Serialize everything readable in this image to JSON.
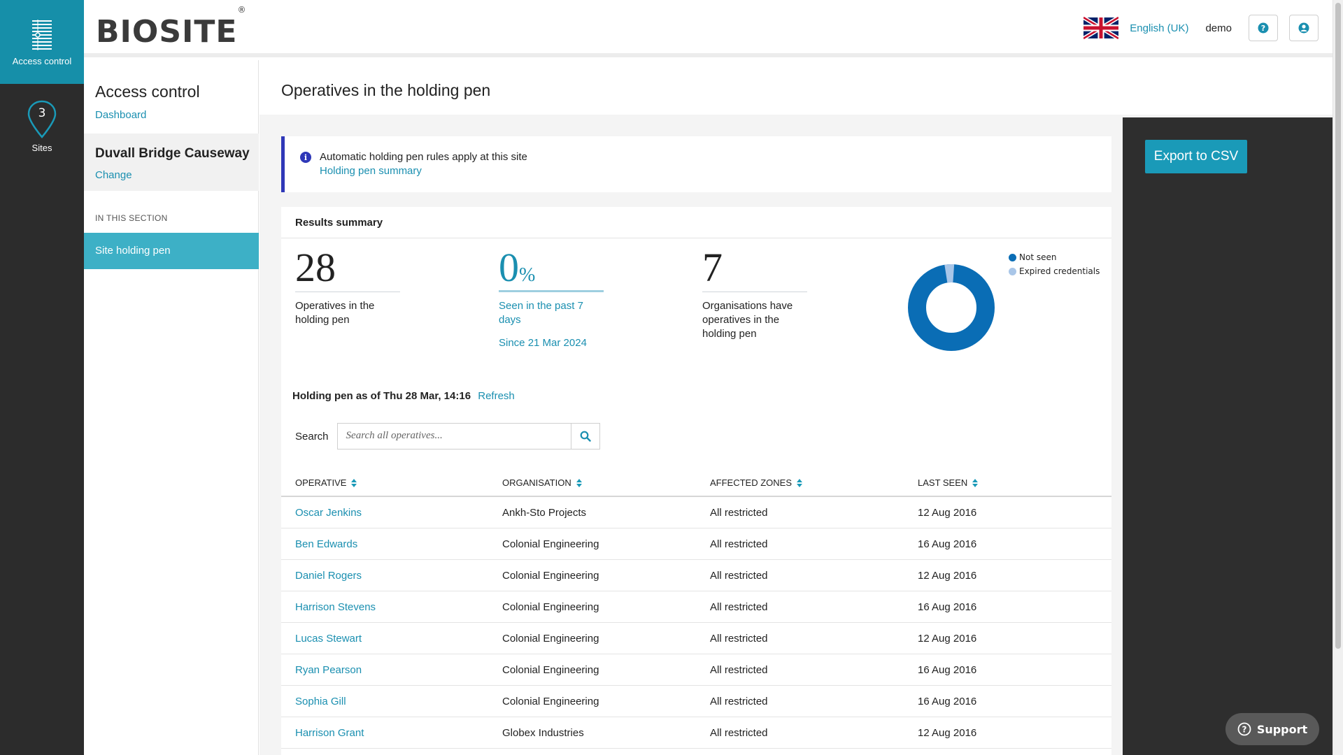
{
  "rail": {
    "items": [
      {
        "label": "Access control",
        "icon": "access-control-icon"
      },
      {
        "label": "Sites",
        "icon": "map-pin-icon",
        "badge": "3"
      }
    ]
  },
  "header": {
    "logo": "BIOSITE",
    "logo_mark": "®",
    "language": "English (UK)",
    "user": "demo"
  },
  "sidebar": {
    "title": "Access control",
    "dashboard_link": "Dashboard",
    "site_name": "Duvall Bridge Causeway",
    "change_link": "Change",
    "section_label": "IN THIS SECTION",
    "selected_item": "Site holding pen"
  },
  "main": {
    "title": "Operatives in the holding pen",
    "export_label": "Export to CSV",
    "info": {
      "text": "Automatic holding pen rules apply at this site",
      "link": "Holding pen summary"
    },
    "results": {
      "heading": "Results summary",
      "stats": [
        {
          "value": "28",
          "desc": "Operatives in the holding pen"
        },
        {
          "value": "0",
          "unit": "%",
          "desc": "Seen in the past 7 days",
          "since": "Since 21 Mar 2024"
        },
        {
          "value": "7",
          "desc": "Organisations have operatives in the holding pen"
        }
      ],
      "legend": [
        {
          "label": "Not seen",
          "color": "#0a6db5"
        },
        {
          "label": "Expired credentials",
          "color": "#a9c6e8"
        }
      ],
      "as_of": "Holding pen as of Thu 28 Mar, 14:16",
      "refresh": "Refresh",
      "search_label": "Search",
      "search_placeholder": "Search all operatives..."
    },
    "table": {
      "columns": [
        "OPERATIVE",
        "ORGANISATION",
        "AFFECTED ZONES",
        "LAST SEEN"
      ],
      "rows": [
        [
          "Oscar Jenkins",
          "Ankh-Sto Projects",
          "All restricted",
          "12 Aug 2016"
        ],
        [
          "Ben Edwards",
          "Colonial Engineering",
          "All restricted",
          "16 Aug 2016"
        ],
        [
          "Daniel Rogers",
          "Colonial Engineering",
          "All restricted",
          "12 Aug 2016"
        ],
        [
          "Harrison Stevens",
          "Colonial Engineering",
          "All restricted",
          "16 Aug 2016"
        ],
        [
          "Lucas Stewart",
          "Colonial Engineering",
          "All restricted",
          "12 Aug 2016"
        ],
        [
          "Ryan Pearson",
          "Colonial Engineering",
          "All restricted",
          "16 Aug 2016"
        ],
        [
          "Sophia Gill",
          "Colonial Engineering",
          "All restricted",
          "16 Aug 2016"
        ],
        [
          "Harrison Grant",
          "Globex Industries",
          "All restricted",
          "12 Aug 2016"
        ]
      ]
    }
  },
  "support_label": "Support",
  "colors": {
    "accent": "#1a8fb0",
    "rail_active": "#168fa9",
    "info_bar": "#2f38b8"
  }
}
